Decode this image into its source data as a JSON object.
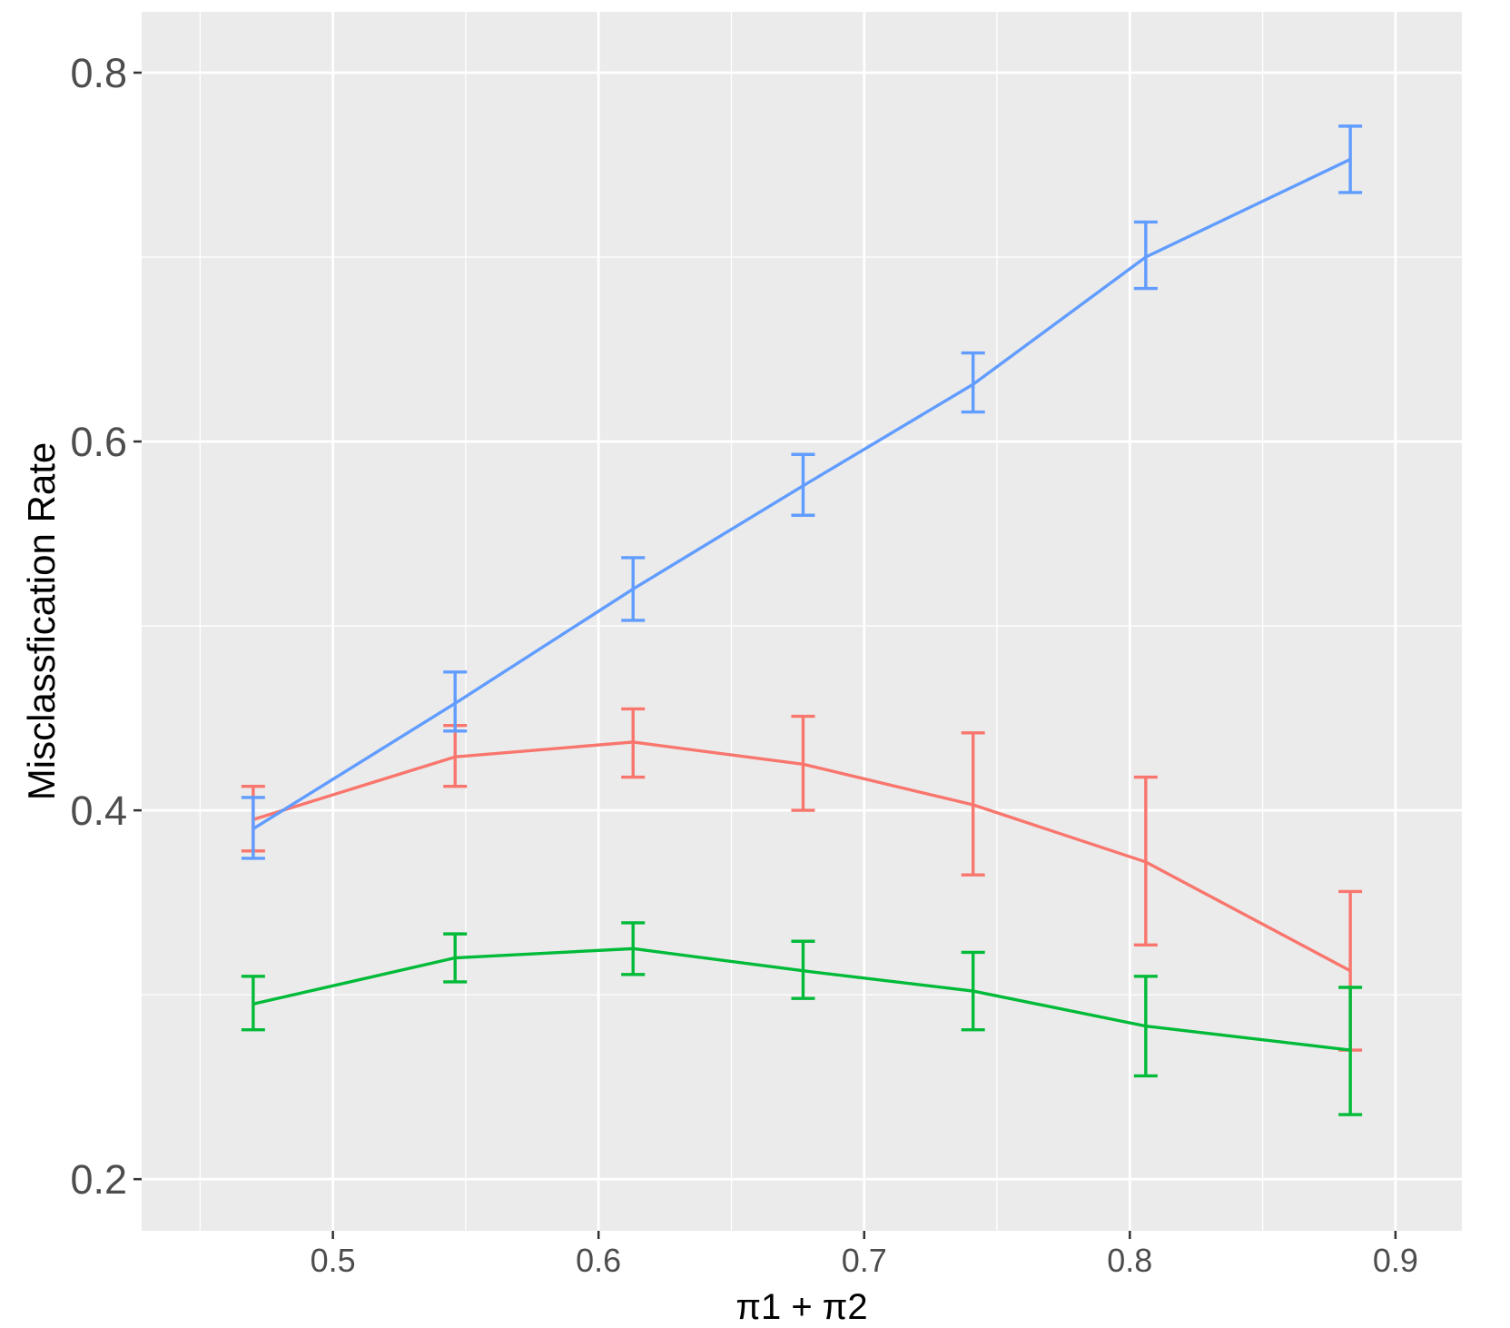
{
  "chart_data": {
    "type": "line",
    "title": "",
    "xlabel": "π1 + π2",
    "ylabel": "Misclassfication Rate",
    "x": [
      0.47,
      0.546,
      0.613,
      0.677,
      0.741,
      0.806,
      0.883
    ],
    "xlim": [
      0.428,
      0.925
    ],
    "ylim": [
      0.172,
      0.833
    ],
    "x_ticks": [
      "0.5",
      "0.6",
      "0.7",
      "0.8",
      "0.9"
    ],
    "x_tick_values": [
      0.5,
      0.6,
      0.7,
      0.8,
      0.9
    ],
    "y_ticks": [
      "0.2",
      "0.4",
      "0.6",
      "0.8"
    ],
    "y_tick_values": [
      0.2,
      0.4,
      0.6,
      0.8
    ],
    "grid": true,
    "legend": "none",
    "series": [
      {
        "color": "#F8766D",
        "values": [
          0.395,
          0.429,
          0.437,
          0.425,
          0.403,
          0.372,
          0.313
        ],
        "lower": [
          0.378,
          0.413,
          0.418,
          0.4,
          0.365,
          0.327,
          0.27
        ],
        "upper": [
          0.413,
          0.446,
          0.455,
          0.451,
          0.442,
          0.418,
          0.356
        ]
      },
      {
        "color": "#00BA38",
        "values": [
          0.295,
          0.32,
          0.325,
          0.313,
          0.302,
          0.283,
          0.27
        ],
        "lower": [
          0.281,
          0.307,
          0.311,
          0.298,
          0.281,
          0.256,
          0.235
        ],
        "upper": [
          0.31,
          0.333,
          0.339,
          0.329,
          0.323,
          0.31,
          0.304
        ]
      },
      {
        "color": "#619CFF",
        "values": [
          0.39,
          0.458,
          0.52,
          0.576,
          0.631,
          0.7,
          0.753
        ],
        "lower": [
          0.374,
          0.443,
          0.503,
          0.56,
          0.616,
          0.683,
          0.735
        ],
        "upper": [
          0.407,
          0.475,
          0.537,
          0.593,
          0.648,
          0.719,
          0.771
        ]
      }
    ]
  }
}
